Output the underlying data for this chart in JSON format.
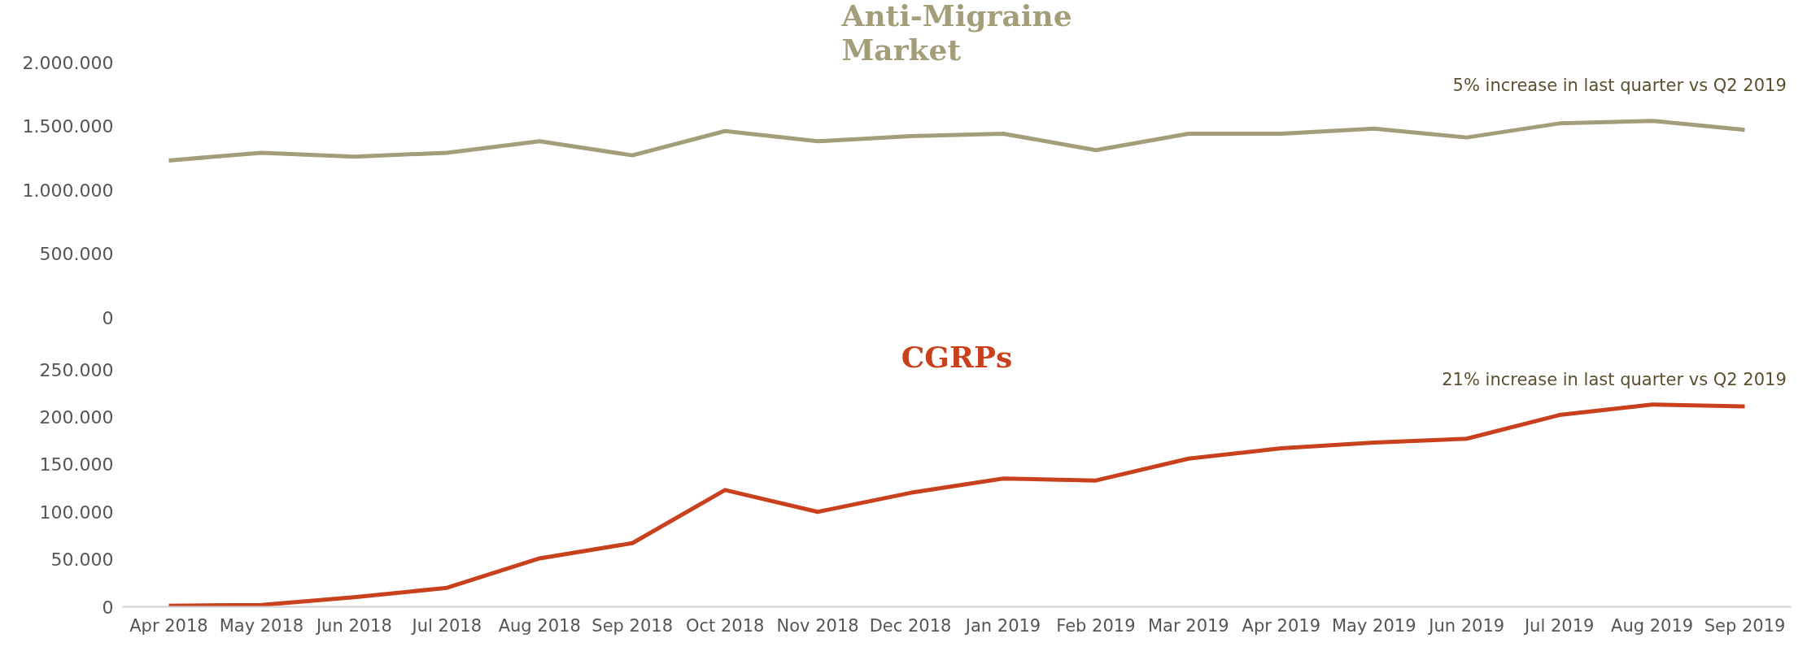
{
  "chart_data": [
    {
      "type": "line",
      "title": "Anti-Migraine\nMarket",
      "categories": [
        null,
        null,
        null,
        null,
        null,
        null,
        null,
        null,
        null,
        null,
        null,
        null,
        null,
        null,
        null,
        null,
        null,
        null
      ],
      "series": [
        {
          "color": "#a39e79",
          "values": [
            1230000,
            1290000,
            1260000,
            1290000,
            1380000,
            1270000,
            1460000,
            1380000,
            1420000,
            1440000,
            1310000,
            1440000,
            1440000,
            1480000,
            1410000,
            1520000,
            1540000,
            1470000
          ]
        }
      ],
      "ylim": [
        0,
        2000000
      ],
      "yticks": [
        {
          "value": 0,
          "label": "0"
        },
        {
          "value": 500000,
          "label": "500.000"
        },
        {
          "value": 1000000,
          "label": "1.000.000"
        },
        {
          "value": 1500000,
          "label": "1.500.000"
        },
        {
          "value": 2000000,
          "label": "2.000.000"
        }
      ],
      "annotations": [
        "5% increase in last quarter vs Q2 2019"
      ],
      "tick_labels": "y",
      "grid": false
    },
    {
      "type": "line",
      "title": "CGRPs",
      "categories": [
        "Apr 2018",
        "May 2018",
        "Jun 2018",
        "Jul 2018",
        "Aug 2018",
        "Sep 2018",
        "Oct 2018",
        "Nov 2018",
        "Dec 2018",
        "Jan 2019",
        "Feb 2019",
        "Mar 2019",
        "Apr 2019",
        "May 2019",
        "Jun 2019",
        "Jul 2019",
        "Aug 2019",
        "Sep 2019"
      ],
      "series": [
        {
          "color": "#c8401c",
          "values": [
            1000,
            2000,
            10000,
            20000,
            51000,
            67000,
            123000,
            100000,
            120000,
            135000,
            133000,
            156000,
            167000,
            173000,
            177000,
            202000,
            213000,
            211000
          ]
        }
      ],
      "ylim": [
        0,
        250000
      ],
      "yticks": [
        {
          "value": 0,
          "label": "0"
        },
        {
          "value": 50000,
          "label": "50.000"
        },
        {
          "value": 100000,
          "label": "100.000"
        },
        {
          "value": 150000,
          "label": "150.000"
        },
        {
          "value": 200000,
          "label": "200.000"
        },
        {
          "value": 250000,
          "label": "250.000"
        }
      ],
      "annotations": [
        "21% increase in last quarter vs Q2 2019"
      ],
      "grid": false
    }
  ]
}
